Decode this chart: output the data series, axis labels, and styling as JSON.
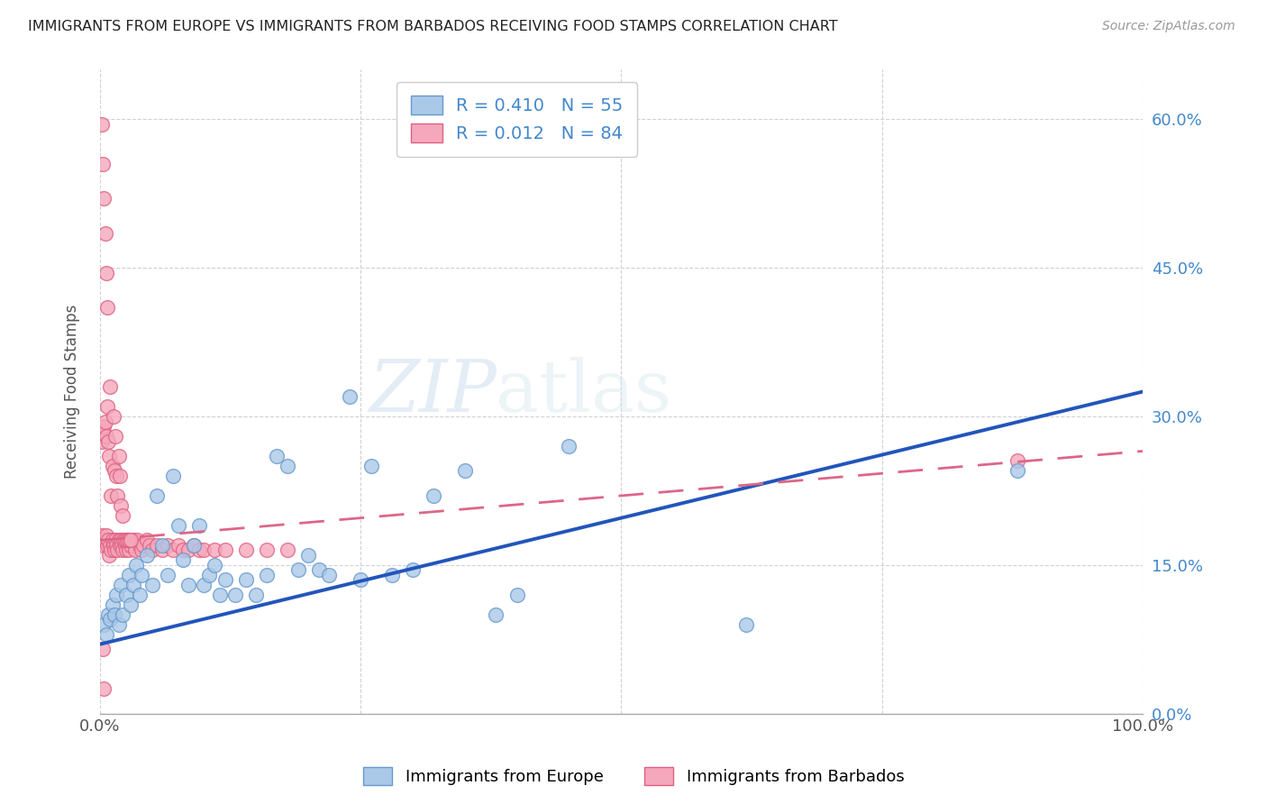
{
  "title": "IMMIGRANTS FROM EUROPE VS IMMIGRANTS FROM BARBADOS RECEIVING FOOD STAMPS CORRELATION CHART",
  "source": "Source: ZipAtlas.com",
  "ylabel": "Receiving Food Stamps",
  "xlim": [
    0.0,
    1.0
  ],
  "ylim": [
    0.0,
    0.65
  ],
  "ytick_vals": [
    0.0,
    0.15,
    0.3,
    0.45,
    0.6
  ],
  "ytick_labels_right": [
    "0.0%",
    "15.0%",
    "30.0%",
    "45.0%",
    "60.0%"
  ],
  "xtick_positions": [
    0.0,
    0.25,
    0.5,
    0.75,
    1.0
  ],
  "europe_color": "#aac8e8",
  "europe_edge": "#6699cc",
  "barbados_color": "#f5a8bc",
  "barbados_edge": "#e06080",
  "europe_line_color": "#2255bb",
  "barbados_line_color": "#dd6688",
  "europe_R": 0.41,
  "europe_N": 55,
  "barbados_R": 0.012,
  "barbados_N": 84,
  "legend_label_europe": "Immigrants from Europe",
  "legend_label_barbados": "Immigrants from Barbados",
  "watermark": "ZIPatlas",
  "europe_line_x0": 0.0,
  "europe_line_y0": 0.07,
  "europe_line_x1": 1.0,
  "europe_line_y1": 0.325,
  "barbados_line_x0": 0.0,
  "barbados_line_y0": 0.175,
  "barbados_line_x1": 1.0,
  "barbados_line_y1": 0.265,
  "europe_x": [
    0.004,
    0.006,
    0.008,
    0.01,
    0.012,
    0.014,
    0.016,
    0.018,
    0.02,
    0.022,
    0.025,
    0.028,
    0.03,
    0.032,
    0.035,
    0.038,
    0.04,
    0.045,
    0.05,
    0.055,
    0.06,
    0.065,
    0.07,
    0.075,
    0.08,
    0.085,
    0.09,
    0.095,
    0.1,
    0.105,
    0.11,
    0.115,
    0.12,
    0.13,
    0.14,
    0.15,
    0.16,
    0.17,
    0.18,
    0.19,
    0.2,
    0.21,
    0.22,
    0.24,
    0.25,
    0.26,
    0.28,
    0.3,
    0.32,
    0.35,
    0.38,
    0.4,
    0.45,
    0.62,
    0.88
  ],
  "europe_y": [
    0.09,
    0.08,
    0.1,
    0.095,
    0.11,
    0.1,
    0.12,
    0.09,
    0.13,
    0.1,
    0.12,
    0.14,
    0.11,
    0.13,
    0.15,
    0.12,
    0.14,
    0.16,
    0.13,
    0.22,
    0.17,
    0.14,
    0.24,
    0.19,
    0.155,
    0.13,
    0.17,
    0.19,
    0.13,
    0.14,
    0.15,
    0.12,
    0.135,
    0.12,
    0.135,
    0.12,
    0.14,
    0.26,
    0.25,
    0.145,
    0.16,
    0.145,
    0.14,
    0.32,
    0.135,
    0.25,
    0.14,
    0.145,
    0.22,
    0.245,
    0.1,
    0.12,
    0.27,
    0.09,
    0.245
  ],
  "barbados_x": [
    0.002,
    0.003,
    0.004,
    0.005,
    0.006,
    0.007,
    0.008,
    0.009,
    0.01,
    0.011,
    0.012,
    0.013,
    0.014,
    0.015,
    0.016,
    0.017,
    0.018,
    0.019,
    0.02,
    0.021,
    0.022,
    0.023,
    0.024,
    0.025,
    0.026,
    0.027,
    0.028,
    0.03,
    0.032,
    0.034,
    0.036,
    0.038,
    0.04,
    0.042,
    0.045,
    0.048,
    0.05,
    0.055,
    0.06,
    0.065,
    0.07,
    0.075,
    0.08,
    0.085,
    0.09,
    0.095,
    0.1,
    0.11,
    0.12,
    0.14,
    0.16,
    0.18,
    0.002,
    0.003,
    0.004,
    0.005,
    0.006,
    0.007,
    0.008,
    0.009,
    0.01,
    0.011,
    0.012,
    0.013,
    0.014,
    0.015,
    0.016,
    0.017,
    0.018,
    0.019,
    0.02,
    0.022,
    0.024,
    0.026,
    0.028,
    0.03,
    0.002,
    0.003,
    0.004,
    0.005,
    0.006,
    0.007,
    0.88,
    0.003,
    0.004
  ],
  "barbados_y": [
    0.18,
    0.175,
    0.17,
    0.175,
    0.18,
    0.17,
    0.175,
    0.16,
    0.17,
    0.165,
    0.175,
    0.17,
    0.165,
    0.175,
    0.17,
    0.165,
    0.175,
    0.17,
    0.175,
    0.17,
    0.165,
    0.175,
    0.17,
    0.165,
    0.175,
    0.17,
    0.165,
    0.17,
    0.175,
    0.165,
    0.175,
    0.17,
    0.165,
    0.17,
    0.175,
    0.17,
    0.165,
    0.17,
    0.165,
    0.17,
    0.165,
    0.17,
    0.165,
    0.165,
    0.17,
    0.165,
    0.165,
    0.165,
    0.165,
    0.165,
    0.165,
    0.165,
    0.275,
    0.285,
    0.29,
    0.295,
    0.28,
    0.31,
    0.275,
    0.26,
    0.33,
    0.22,
    0.25,
    0.3,
    0.245,
    0.28,
    0.24,
    0.22,
    0.26,
    0.24,
    0.21,
    0.2,
    0.175,
    0.175,
    0.175,
    0.175,
    0.595,
    0.555,
    0.52,
    0.485,
    0.445,
    0.41,
    0.255,
    0.065,
    0.025
  ]
}
